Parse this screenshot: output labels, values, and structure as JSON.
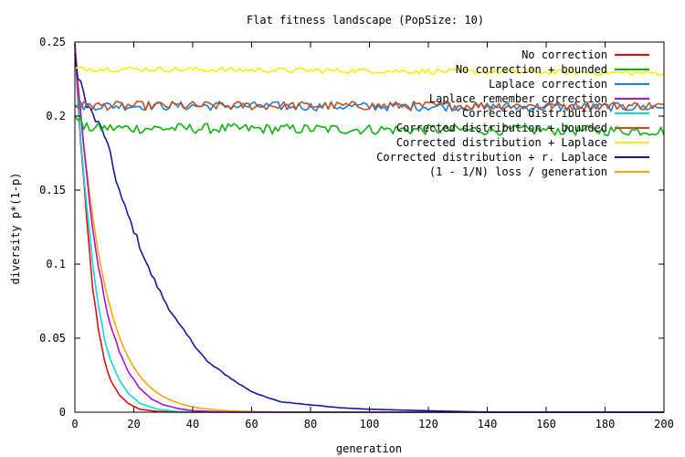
{
  "chart_data": {
    "type": "line",
    "title": "Flat fitness landscape (PopSize: 10)",
    "xlabel": "generation",
    "ylabel": "diversity p*(1-p)",
    "xlim": [
      0,
      200
    ],
    "ylim": [
      0,
      0.25
    ],
    "x_ticks": [
      0,
      20,
      40,
      60,
      80,
      100,
      120,
      140,
      160,
      180,
      200
    ],
    "y_ticks": [
      0,
      0.05,
      0.1,
      0.15,
      0.2,
      0.25
    ],
    "x_tick_labels": [
      "0",
      "20",
      "40",
      "60",
      "80",
      "100",
      "120",
      "140",
      "160",
      "180",
      "200"
    ],
    "y_tick_labels": [
      "0",
      "0.05",
      "0.1",
      "0.15",
      "0.2",
      "0.25"
    ],
    "grid": false,
    "legend_position": "top-right",
    "series": [
      {
        "name": "No correction",
        "color": "#e01010",
        "kind": "decay",
        "start": 0.247,
        "points": [
          [
            0,
            0.247
          ],
          [
            2,
            0.18
          ],
          [
            4,
            0.13
          ],
          [
            6,
            0.085
          ],
          [
            8,
            0.055
          ],
          [
            10,
            0.035
          ],
          [
            12,
            0.022
          ],
          [
            15,
            0.012
          ],
          [
            18,
            0.006
          ],
          [
            22,
            0.002
          ],
          [
            28,
            0.0005
          ],
          [
            35,
            0
          ],
          [
            200,
            0
          ]
        ]
      },
      {
        "name": "No correction + bounded",
        "color": "#10b010",
        "kind": "flat",
        "start": 0.2,
        "points": [
          [
            1,
            0.2
          ],
          [
            3,
            0.192
          ],
          [
            200,
            0.19
          ]
        ],
        "noise": 0.0035
      },
      {
        "name": "Laplace correction",
        "color": "#1a7fe0",
        "kind": "flat",
        "start": 0.207,
        "points": [
          [
            1,
            0.207
          ],
          [
            200,
            0.206
          ]
        ],
        "noise": 0.003
      },
      {
        "name": "Laplace remember correction",
        "color": "#b010d0",
        "kind": "decay",
        "start": 0.248,
        "points": [
          [
            0,
            0.248
          ],
          [
            2,
            0.2
          ],
          [
            4,
            0.16
          ],
          [
            6,
            0.125
          ],
          [
            8,
            0.098
          ],
          [
            10,
            0.077
          ],
          [
            12,
            0.06
          ],
          [
            15,
            0.042
          ],
          [
            18,
            0.028
          ],
          [
            22,
            0.016
          ],
          [
            26,
            0.009
          ],
          [
            30,
            0.005
          ],
          [
            35,
            0.0025
          ],
          [
            40,
            0.001
          ],
          [
            50,
            0.0002
          ],
          [
            60,
            0
          ],
          [
            200,
            0
          ]
        ]
      },
      {
        "name": "Corrected distribution",
        "color": "#10d8d8",
        "kind": "decay",
        "start": 0.247,
        "points": [
          [
            0,
            0.247
          ],
          [
            2,
            0.185
          ],
          [
            4,
            0.14
          ],
          [
            6,
            0.1
          ],
          [
            8,
            0.072
          ],
          [
            10,
            0.05
          ],
          [
            12,
            0.036
          ],
          [
            15,
            0.022
          ],
          [
            18,
            0.013
          ],
          [
            22,
            0.006
          ],
          [
            28,
            0.002
          ],
          [
            35,
            0.0005
          ],
          [
            45,
            0
          ],
          [
            200,
            0
          ]
        ]
      },
      {
        "name": "Corrected distribution + bounded",
        "color": "#c05020",
        "kind": "flat",
        "start": 0.207,
        "points": [
          [
            1,
            0.207
          ],
          [
            200,
            0.207
          ]
        ],
        "noise": 0.003
      },
      {
        "name": "Corrected distribution + Laplace",
        "color": "#f0f010",
        "kind": "flat",
        "start": 0.232,
        "points": [
          [
            1,
            0.232
          ],
          [
            200,
            0.229
          ]
        ],
        "noise": 0.0018
      },
      {
        "name": "Corrected distribution + r. Laplace",
        "color": "#1818a0",
        "kind": "decay",
        "start": 0.245,
        "points": [
          [
            0,
            0.245
          ],
          [
            1,
            0.225
          ],
          [
            3,
            0.215
          ],
          [
            5,
            0.205
          ],
          [
            7,
            0.197
          ],
          [
            10,
            0.188
          ],
          [
            13,
            0.165
          ],
          [
            16,
            0.143
          ],
          [
            20,
            0.123
          ],
          [
            25,
            0.097
          ],
          [
            30,
            0.077
          ],
          [
            35,
            0.06
          ],
          [
            40,
            0.047
          ],
          [
            45,
            0.034
          ],
          [
            50,
            0.027
          ],
          [
            55,
            0.02
          ],
          [
            60,
            0.014
          ],
          [
            65,
            0.01
          ],
          [
            70,
            0.007
          ],
          [
            80,
            0.005
          ],
          [
            90,
            0.003
          ],
          [
            100,
            0.002
          ],
          [
            110,
            0.0015
          ],
          [
            120,
            0.001
          ],
          [
            130,
            0.0005
          ],
          [
            142,
            0
          ],
          [
            200,
            0
          ]
        ]
      },
      {
        "name": "(1 - 1/N) loss / generation",
        "color": "#f8a800",
        "kind": "formula",
        "start": 0.25,
        "points": [],
        "noise": 0
      }
    ]
  }
}
